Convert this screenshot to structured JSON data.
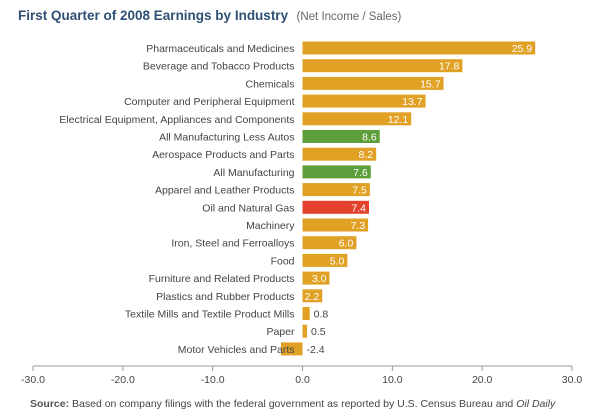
{
  "header": {
    "title": "First Quarter of 2008 Earnings by Industry",
    "subtitle": "(Net Income / Sales)"
  },
  "footer": {
    "source_label": "Source:",
    "source_text": "Based on company filings with the federal government as reported by U.S. Census Bureau and",
    "source_publication": "Oil Daily"
  },
  "colors": {
    "default": "#e0a125",
    "highlight_green": "#5e9e3a",
    "highlight_red": "#e4412d",
    "axis": "#999999",
    "label": "#444444"
  },
  "chart_data": {
    "type": "bar",
    "orientation": "horizontal",
    "title": "First Quarter of 2008 Earnings by Industry",
    "subtitle": "(Net Income / Sales)",
    "xlim": [
      -30,
      30
    ],
    "xticks": [
      -30,
      -20,
      -10,
      0,
      10,
      20,
      30
    ],
    "xtick_labels": [
      "-30.0",
      "-20.0",
      "-10.0",
      "0.0",
      "10.0",
      "20.0",
      "30.0"
    ],
    "grid": false,
    "categories": [
      "Pharmaceuticals and Medicines",
      "Beverage and Tobacco Products",
      "Chemicals",
      "Computer and Peripheral Equipment",
      "Electrical Equipment, Appliances and Components",
      "All Manufacturing Less Autos",
      "Aerospace Products and Parts",
      "All Manufacturing",
      "Apparel and Leather Products",
      "Oil and Natural Gas",
      "Machinery",
      "Iron, Steel and Ferroalloys",
      "Food",
      "Furniture and Related Products",
      "Plastics and Rubber Products",
      "Textile Mills and Textile Product Mills",
      "Paper",
      "Motor Vehicles and Parts"
    ],
    "values": [
      25.9,
      17.8,
      15.7,
      13.7,
      12.1,
      8.6,
      8.2,
      7.6,
      7.5,
      7.4,
      7.3,
      6.0,
      5.0,
      3.0,
      2.2,
      0.8,
      0.5,
      -2.4
    ],
    "value_labels": [
      "25.9",
      "17.8",
      "15.7",
      "13.7",
      "12.1",
      "8.6",
      "8.2",
      "7.6",
      "7.5",
      "7.4",
      "7.3",
      "6.0",
      "5.0",
      "3.0",
      "2.2",
      "0.8",
      "0.5",
      "-2.4"
    ],
    "bar_colors": [
      "default",
      "default",
      "default",
      "default",
      "default",
      "highlight_green",
      "default",
      "highlight_green",
      "default",
      "highlight_red",
      "default",
      "default",
      "default",
      "default",
      "default",
      "default",
      "default",
      "default"
    ]
  }
}
